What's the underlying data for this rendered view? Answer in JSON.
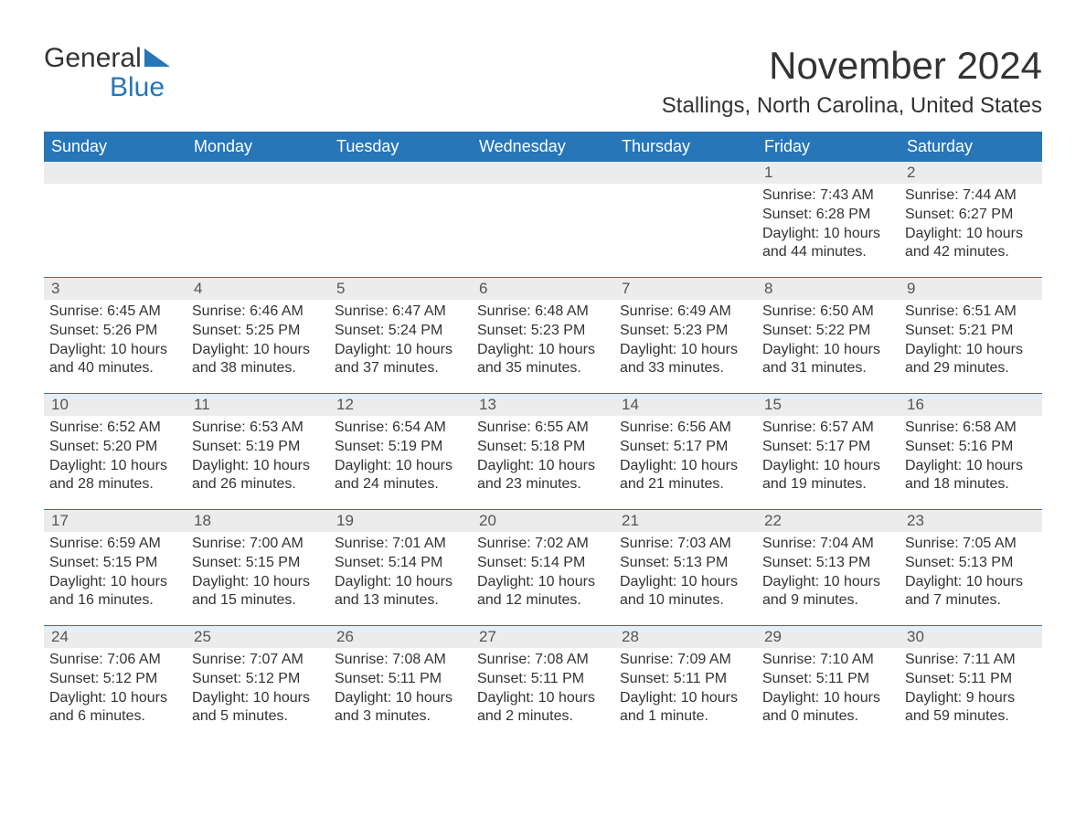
{
  "logo": {
    "text1": "General",
    "text2": "Blue"
  },
  "title": "November 2024",
  "location": "Stallings, North Carolina, United States",
  "day_headers": [
    "Sunday",
    "Monday",
    "Tuesday",
    "Wednesday",
    "Thursday",
    "Friday",
    "Saturday"
  ],
  "colors": {
    "header_bg": "#2776b8",
    "header_text": "#ffffff",
    "daynum_bg": "#ececec",
    "text": "#333333",
    "week_border": "#2776b8",
    "logo_blue": "#2776b8",
    "background": "#ffffff"
  },
  "fonts": {
    "title_size": 42,
    "location_size": 24,
    "header_size": 18,
    "body_size": 16
  },
  "weeks": [
    [
      {
        "empty": true
      },
      {
        "empty": true
      },
      {
        "empty": true
      },
      {
        "empty": true
      },
      {
        "empty": true
      },
      {
        "day": "1",
        "sunrise": "Sunrise: 7:43 AM",
        "sunset": "Sunset: 6:28 PM",
        "daylight1": "Daylight: 10 hours",
        "daylight2": "and 44 minutes."
      },
      {
        "day": "2",
        "sunrise": "Sunrise: 7:44 AM",
        "sunset": "Sunset: 6:27 PM",
        "daylight1": "Daylight: 10 hours",
        "daylight2": "and 42 minutes."
      }
    ],
    [
      {
        "day": "3",
        "sunrise": "Sunrise: 6:45 AM",
        "sunset": "Sunset: 5:26 PM",
        "daylight1": "Daylight: 10 hours",
        "daylight2": "and 40 minutes."
      },
      {
        "day": "4",
        "sunrise": "Sunrise: 6:46 AM",
        "sunset": "Sunset: 5:25 PM",
        "daylight1": "Daylight: 10 hours",
        "daylight2": "and 38 minutes."
      },
      {
        "day": "5",
        "sunrise": "Sunrise: 6:47 AM",
        "sunset": "Sunset: 5:24 PM",
        "daylight1": "Daylight: 10 hours",
        "daylight2": "and 37 minutes."
      },
      {
        "day": "6",
        "sunrise": "Sunrise: 6:48 AM",
        "sunset": "Sunset: 5:23 PM",
        "daylight1": "Daylight: 10 hours",
        "daylight2": "and 35 minutes."
      },
      {
        "day": "7",
        "sunrise": "Sunrise: 6:49 AM",
        "sunset": "Sunset: 5:23 PM",
        "daylight1": "Daylight: 10 hours",
        "daylight2": "and 33 minutes."
      },
      {
        "day": "8",
        "sunrise": "Sunrise: 6:50 AM",
        "sunset": "Sunset: 5:22 PM",
        "daylight1": "Daylight: 10 hours",
        "daylight2": "and 31 minutes."
      },
      {
        "day": "9",
        "sunrise": "Sunrise: 6:51 AM",
        "sunset": "Sunset: 5:21 PM",
        "daylight1": "Daylight: 10 hours",
        "daylight2": "and 29 minutes."
      }
    ],
    [
      {
        "day": "10",
        "sunrise": "Sunrise: 6:52 AM",
        "sunset": "Sunset: 5:20 PM",
        "daylight1": "Daylight: 10 hours",
        "daylight2": "and 28 minutes."
      },
      {
        "day": "11",
        "sunrise": "Sunrise: 6:53 AM",
        "sunset": "Sunset: 5:19 PM",
        "daylight1": "Daylight: 10 hours",
        "daylight2": "and 26 minutes."
      },
      {
        "day": "12",
        "sunrise": "Sunrise: 6:54 AM",
        "sunset": "Sunset: 5:19 PM",
        "daylight1": "Daylight: 10 hours",
        "daylight2": "and 24 minutes."
      },
      {
        "day": "13",
        "sunrise": "Sunrise: 6:55 AM",
        "sunset": "Sunset: 5:18 PM",
        "daylight1": "Daylight: 10 hours",
        "daylight2": "and 23 minutes."
      },
      {
        "day": "14",
        "sunrise": "Sunrise: 6:56 AM",
        "sunset": "Sunset: 5:17 PM",
        "daylight1": "Daylight: 10 hours",
        "daylight2": "and 21 minutes."
      },
      {
        "day": "15",
        "sunrise": "Sunrise: 6:57 AM",
        "sunset": "Sunset: 5:17 PM",
        "daylight1": "Daylight: 10 hours",
        "daylight2": "and 19 minutes."
      },
      {
        "day": "16",
        "sunrise": "Sunrise: 6:58 AM",
        "sunset": "Sunset: 5:16 PM",
        "daylight1": "Daylight: 10 hours",
        "daylight2": "and 18 minutes."
      }
    ],
    [
      {
        "day": "17",
        "sunrise": "Sunrise: 6:59 AM",
        "sunset": "Sunset: 5:15 PM",
        "daylight1": "Daylight: 10 hours",
        "daylight2": "and 16 minutes."
      },
      {
        "day": "18",
        "sunrise": "Sunrise: 7:00 AM",
        "sunset": "Sunset: 5:15 PM",
        "daylight1": "Daylight: 10 hours",
        "daylight2": "and 15 minutes."
      },
      {
        "day": "19",
        "sunrise": "Sunrise: 7:01 AM",
        "sunset": "Sunset: 5:14 PM",
        "daylight1": "Daylight: 10 hours",
        "daylight2": "and 13 minutes."
      },
      {
        "day": "20",
        "sunrise": "Sunrise: 7:02 AM",
        "sunset": "Sunset: 5:14 PM",
        "daylight1": "Daylight: 10 hours",
        "daylight2": "and 12 minutes."
      },
      {
        "day": "21",
        "sunrise": "Sunrise: 7:03 AM",
        "sunset": "Sunset: 5:13 PM",
        "daylight1": "Daylight: 10 hours",
        "daylight2": "and 10 minutes."
      },
      {
        "day": "22",
        "sunrise": "Sunrise: 7:04 AM",
        "sunset": "Sunset: 5:13 PM",
        "daylight1": "Daylight: 10 hours",
        "daylight2": "and 9 minutes."
      },
      {
        "day": "23",
        "sunrise": "Sunrise: 7:05 AM",
        "sunset": "Sunset: 5:13 PM",
        "daylight1": "Daylight: 10 hours",
        "daylight2": "and 7 minutes."
      }
    ],
    [
      {
        "day": "24",
        "sunrise": "Sunrise: 7:06 AM",
        "sunset": "Sunset: 5:12 PM",
        "daylight1": "Daylight: 10 hours",
        "daylight2": "and 6 minutes."
      },
      {
        "day": "25",
        "sunrise": "Sunrise: 7:07 AM",
        "sunset": "Sunset: 5:12 PM",
        "daylight1": "Daylight: 10 hours",
        "daylight2": "and 5 minutes."
      },
      {
        "day": "26",
        "sunrise": "Sunrise: 7:08 AM",
        "sunset": "Sunset: 5:11 PM",
        "daylight1": "Daylight: 10 hours",
        "daylight2": "and 3 minutes."
      },
      {
        "day": "27",
        "sunrise": "Sunrise: 7:08 AM",
        "sunset": "Sunset: 5:11 PM",
        "daylight1": "Daylight: 10 hours",
        "daylight2": "and 2 minutes."
      },
      {
        "day": "28",
        "sunrise": "Sunrise: 7:09 AM",
        "sunset": "Sunset: 5:11 PM",
        "daylight1": "Daylight: 10 hours",
        "daylight2": "and 1 minute."
      },
      {
        "day": "29",
        "sunrise": "Sunrise: 7:10 AM",
        "sunset": "Sunset: 5:11 PM",
        "daylight1": "Daylight: 10 hours",
        "daylight2": "and 0 minutes."
      },
      {
        "day": "30",
        "sunrise": "Sunrise: 7:11 AM",
        "sunset": "Sunset: 5:11 PM",
        "daylight1": "Daylight: 9 hours",
        "daylight2": "and 59 minutes."
      }
    ]
  ]
}
